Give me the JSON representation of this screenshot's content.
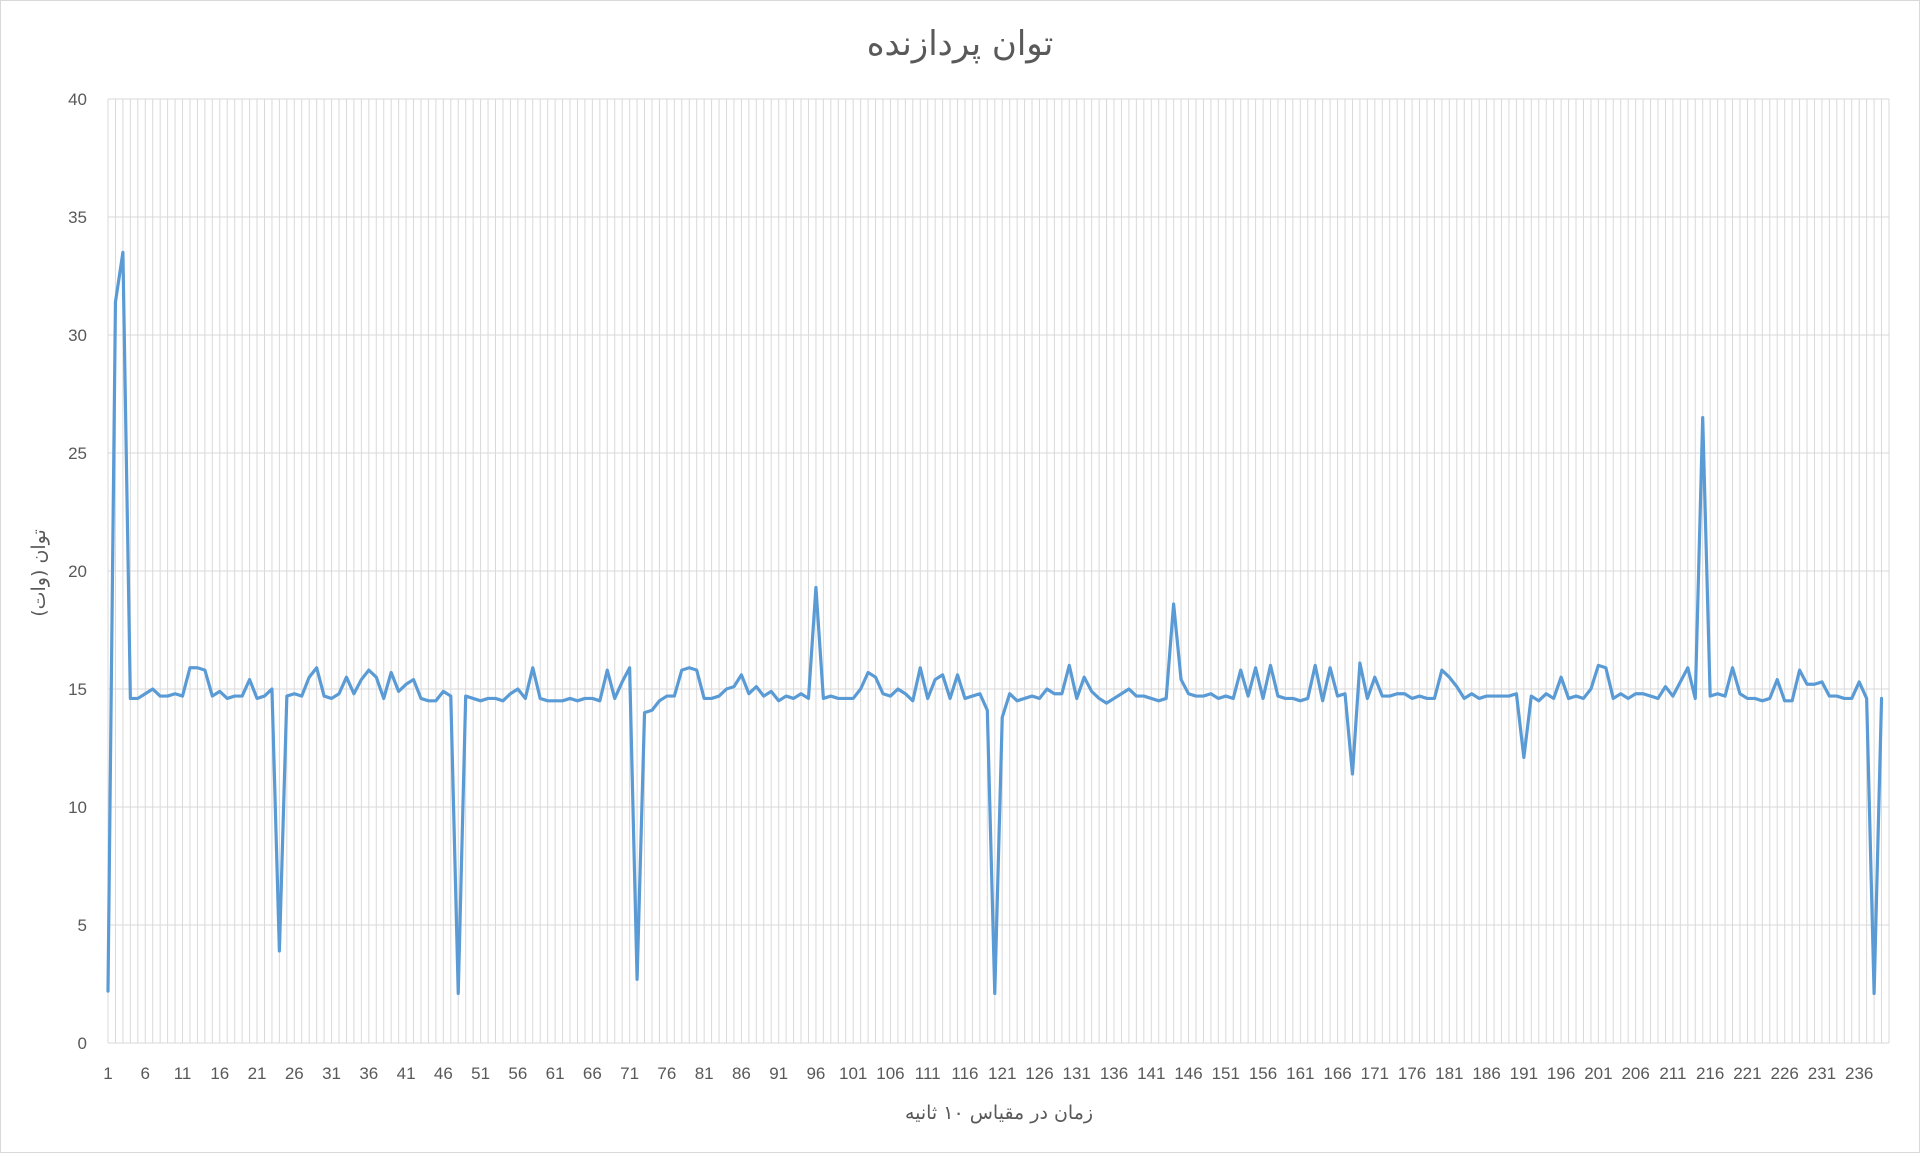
{
  "chart_data": {
    "type": "line",
    "title": "توان پردازنده",
    "xlabel": "زمان در مقیاس ۱۰ ثانیه",
    "ylabel": "توان (وات)",
    "ylim": [
      0,
      40
    ],
    "y_ticks": [
      0,
      5,
      10,
      15,
      20,
      25,
      30,
      35,
      40
    ],
    "x_tick_labels": [
      "1",
      "6",
      "11",
      "16",
      "21",
      "26",
      "31",
      "36",
      "41",
      "46",
      "51",
      "56",
      "61",
      "66",
      "71",
      "76",
      "81",
      "86",
      "91",
      "96",
      "101",
      "106",
      "111",
      "116",
      "121",
      "126",
      "131",
      "136",
      "141",
      "146",
      "151",
      "156",
      "161",
      "166",
      "171",
      "176",
      "181",
      "186",
      "191",
      "196",
      "201",
      "206",
      "211",
      "216",
      "221",
      "226",
      "231",
      "236"
    ],
    "x_range": [
      1,
      240
    ],
    "grid": true,
    "legend": "none",
    "line_color": "#5b9bd5",
    "grid_color": "#d9d9d9",
    "series": [
      {
        "values": [
          2.2,
          31.4,
          33.5,
          14.6,
          14.6,
          14.8,
          15.0,
          14.7,
          14.7,
          14.8,
          14.7,
          15.9,
          15.9,
          15.8,
          14.7,
          14.9,
          14.6,
          14.7,
          14.7,
          15.4,
          14.6,
          14.7,
          15.0,
          3.9,
          14.7,
          14.8,
          14.7,
          15.5,
          15.9,
          14.7,
          14.6,
          14.8,
          15.5,
          14.8,
          15.4,
          15.8,
          15.5,
          14.6,
          15.7,
          14.9,
          15.2,
          15.4,
          14.6,
          14.5,
          14.5,
          14.9,
          14.7,
          2.1,
          14.7,
          14.6,
          14.5,
          14.6,
          14.6,
          14.5,
          14.8,
          15.0,
          14.6,
          15.9,
          14.6,
          14.5,
          14.5,
          14.5,
          14.6,
          14.5,
          14.6,
          14.6,
          14.5,
          15.8,
          14.6,
          15.3,
          15.9,
          2.7,
          14.0,
          14.1,
          14.5,
          14.7,
          14.7,
          15.8,
          15.9,
          15.8,
          14.6,
          14.6,
          14.7,
          15.0,
          15.1,
          15.6,
          14.8,
          15.1,
          14.7,
          14.9,
          14.5,
          14.7,
          14.6,
          14.8,
          14.6,
          19.3,
          14.6,
          14.7,
          14.6,
          14.6,
          14.6,
          15.0,
          15.7,
          15.5,
          14.8,
          14.7,
          15.0,
          14.8,
          14.5,
          15.9,
          14.6,
          15.4,
          15.6,
          14.6,
          15.6,
          14.6,
          14.7,
          14.8,
          14.1,
          2.1,
          13.8,
          14.8,
          14.5,
          14.6,
          14.7,
          14.6,
          15.0,
          14.8,
          14.8,
          16.0,
          14.6,
          15.5,
          14.9,
          14.6,
          14.4,
          14.6,
          14.8,
          15.0,
          14.7,
          14.7,
          14.6,
          14.5,
          14.6,
          18.6,
          15.4,
          14.8,
          14.7,
          14.7,
          14.8,
          14.6,
          14.7,
          14.6,
          15.8,
          14.7,
          15.9,
          14.6,
          16.0,
          14.7,
          14.6,
          14.6,
          14.5,
          14.6,
          16.0,
          14.5,
          15.9,
          14.7,
          14.8,
          11.4,
          16.1,
          14.6,
          15.5,
          14.7,
          14.7,
          14.8,
          14.8,
          14.6,
          14.7,
          14.6,
          14.6,
          15.8,
          15.5,
          15.1,
          14.6,
          14.8,
          14.6,
          14.7,
          14.7,
          14.7,
          14.7,
          14.8,
          12.1,
          14.7,
          14.5,
          14.8,
          14.6,
          15.5,
          14.6,
          14.7,
          14.6,
          15.0,
          16.0,
          15.9,
          14.6,
          14.8,
          14.6,
          14.8,
          14.8,
          14.7,
          14.6,
          15.1,
          14.7,
          15.3,
          15.9,
          14.6,
          26.5,
          14.7,
          14.8,
          14.7,
          15.9,
          14.8,
          14.6,
          14.6,
          14.5,
          14.6,
          15.4,
          14.5,
          14.5,
          15.8,
          15.2,
          15.2,
          15.3,
          14.7,
          14.7,
          14.6,
          14.6,
          15.3,
          14.6,
          2.1,
          14.6
        ]
      }
    ]
  }
}
